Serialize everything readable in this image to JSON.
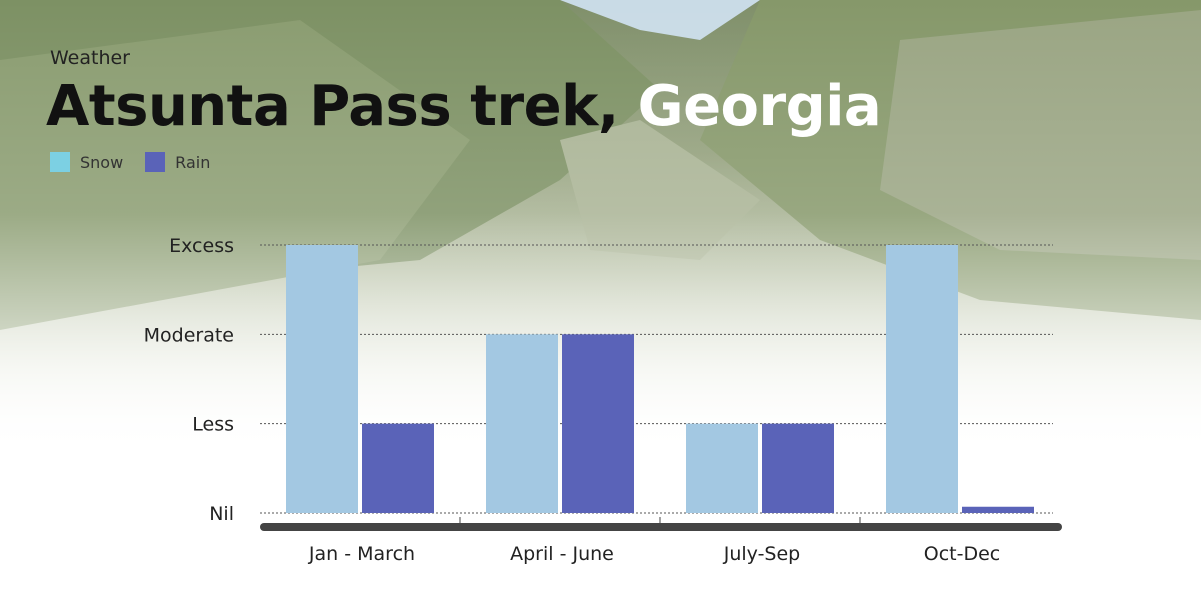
{
  "header": {
    "kicker": "Weather",
    "title_main": "Atsunta Pass trek,",
    "title_highlight": "Georgia"
  },
  "colors": {
    "snow": "#a3c8e2",
    "snow_legend": "#7cd0e3",
    "rain": "#5a63b8",
    "axis": "#444444",
    "grid": "#555555"
  },
  "chart_data": {
    "type": "bar",
    "title": "",
    "xlabel": "",
    "ylabel": "",
    "categories": [
      "Jan - March",
      "April - June",
      "July-Sep",
      "Oct-Dec"
    ],
    "y_levels": [
      "Nil",
      "Less",
      "Moderate",
      "Excess"
    ],
    "ylim": [
      0,
      3
    ],
    "grid": true,
    "legend": "top-left",
    "series": [
      {
        "name": "Snow",
        "values": [
          3,
          2,
          1,
          3
        ]
      },
      {
        "name": "Rain",
        "values": [
          1,
          2,
          1,
          0.07
        ]
      }
    ]
  }
}
